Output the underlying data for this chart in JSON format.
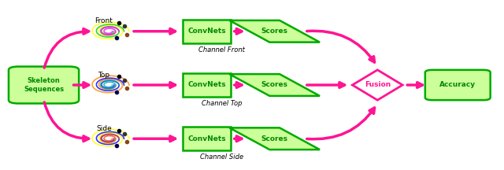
{
  "bg_color": "#ffffff",
  "arrow_color": "#ff1493",
  "box_border_color": "#00aa00",
  "box_fill_color": "#ccff99",
  "skeleton_fill": "#ccff99",
  "text_color": "#008800",
  "arrow_lw": 2.5,
  "fig_w": 6.4,
  "fig_h": 2.16,
  "rows": [
    0.82,
    0.5,
    0.18
  ],
  "labels_front": "Front",
  "labels_top": "Top",
  "labels_side": "Side",
  "channel_front": "Channel Front",
  "channel_top": "Channel Top",
  "channel_side": "Channel Side",
  "label_convnets": "ConvNets",
  "label_scores": "Scores",
  "label_fusion": "Fusion",
  "label_accuracy": "Accuracy",
  "label_skeleton": "Skeleton\nSequences"
}
